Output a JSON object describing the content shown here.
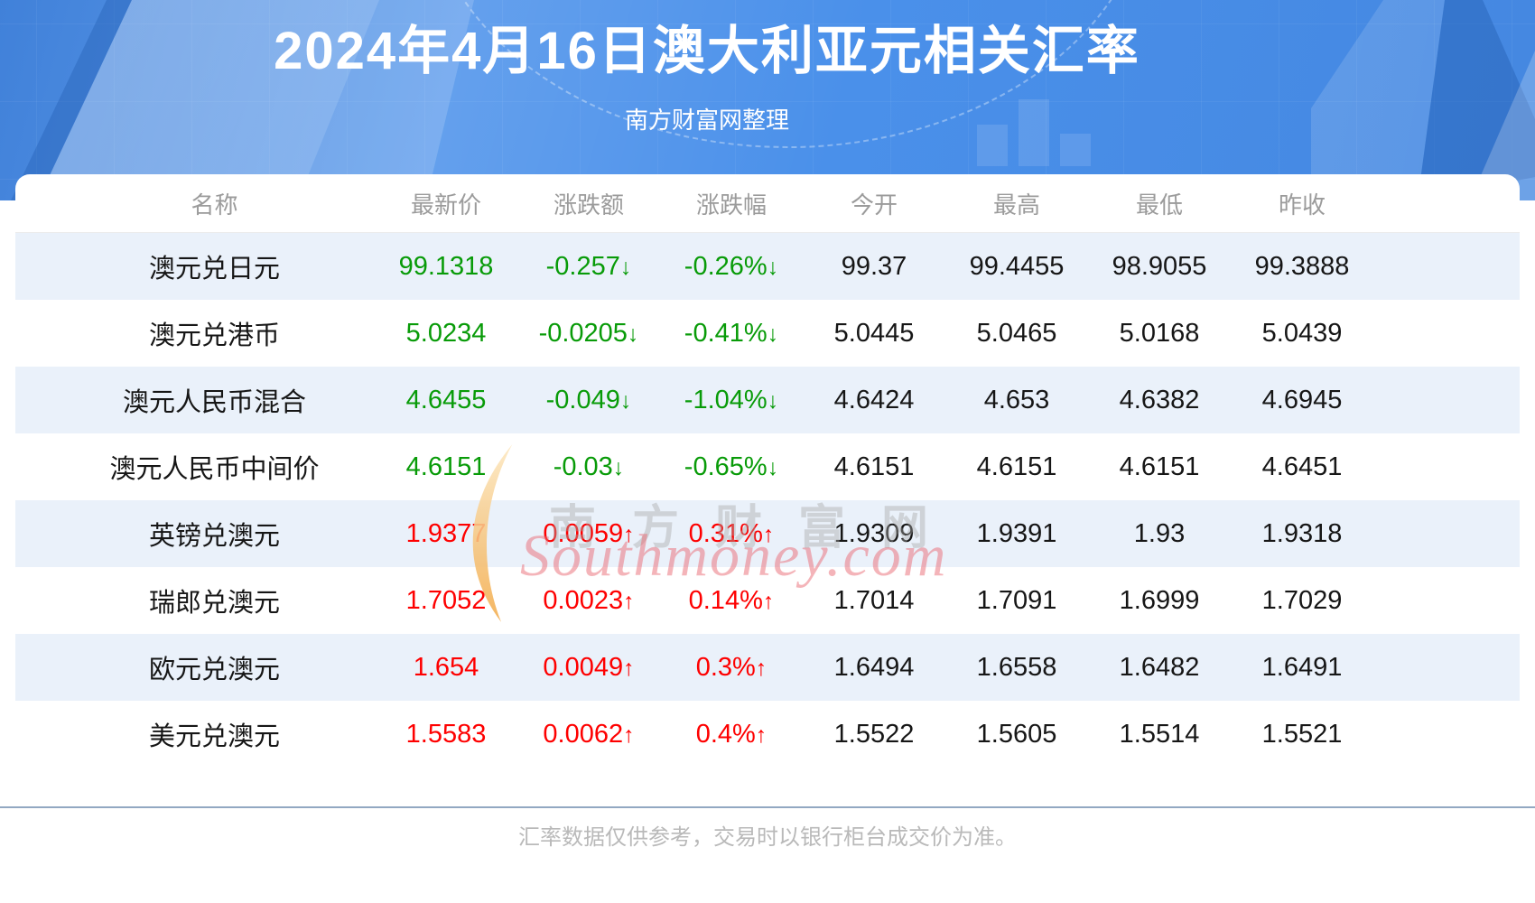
{
  "page": {
    "title": "2024年4月16日澳大利亚元相关汇率",
    "subtitle": "南方财富网整理",
    "footer_note": "汇率数据仅供参考，交易时以银行柜台成交价为准。"
  },
  "watermark": {
    "cn": "南方财富网",
    "en": "Southmoney.com"
  },
  "colors": {
    "header_blue": "#4a90ea",
    "up": "#fe0000",
    "down": "#089b08",
    "row_alt": "#eaf1fa",
    "divider": "#92a8c2"
  },
  "table": {
    "arrow_up": "↑",
    "arrow_down": "↓",
    "columns": [
      "名称",
      "最新价",
      "涨跌额",
      "涨跌幅",
      "今开",
      "最高",
      "最低",
      "昨收"
    ],
    "rows": [
      {
        "name": "澳元兑日元",
        "latest": "99.1318",
        "change": "-0.257",
        "change_pct": "-0.26%",
        "open": "99.37",
        "high": "99.4455",
        "low": "98.9055",
        "prev_close": "99.3888",
        "direction": "down"
      },
      {
        "name": "澳元兑港币",
        "latest": "5.0234",
        "change": "-0.0205",
        "change_pct": "-0.41%",
        "open": "5.0445",
        "high": "5.0465",
        "low": "5.0168",
        "prev_close": "5.0439",
        "direction": "down"
      },
      {
        "name": "澳元人民币混合",
        "latest": "4.6455",
        "change": "-0.049",
        "change_pct": "-1.04%",
        "open": "4.6424",
        "high": "4.653",
        "low": "4.6382",
        "prev_close": "4.6945",
        "direction": "down"
      },
      {
        "name": "澳元人民币中间价",
        "latest": "4.6151",
        "change": "-0.03",
        "change_pct": "-0.65%",
        "open": "4.6151",
        "high": "4.6151",
        "low": "4.6151",
        "prev_close": "4.6451",
        "direction": "down"
      },
      {
        "name": "英镑兑澳元",
        "latest": "1.9377",
        "change": "0.0059",
        "change_pct": "0.31%",
        "open": "1.9309",
        "high": "1.9391",
        "low": "1.93",
        "prev_close": "1.9318",
        "direction": "up"
      },
      {
        "name": "瑞郎兑澳元",
        "latest": "1.7052",
        "change": "0.0023",
        "change_pct": "0.14%",
        "open": "1.7014",
        "high": "1.7091",
        "low": "1.6999",
        "prev_close": "1.7029",
        "direction": "up"
      },
      {
        "name": "欧元兑澳元",
        "latest": "1.654",
        "change": "0.0049",
        "change_pct": "0.3%",
        "open": "1.6494",
        "high": "1.6558",
        "low": "1.6482",
        "prev_close": "1.6491",
        "direction": "up"
      },
      {
        "name": "美元兑澳元",
        "latest": "1.5583",
        "change": "0.0062",
        "change_pct": "0.4%",
        "open": "1.5522",
        "high": "1.5605",
        "low": "1.5514",
        "prev_close": "1.5521",
        "direction": "up"
      }
    ]
  }
}
